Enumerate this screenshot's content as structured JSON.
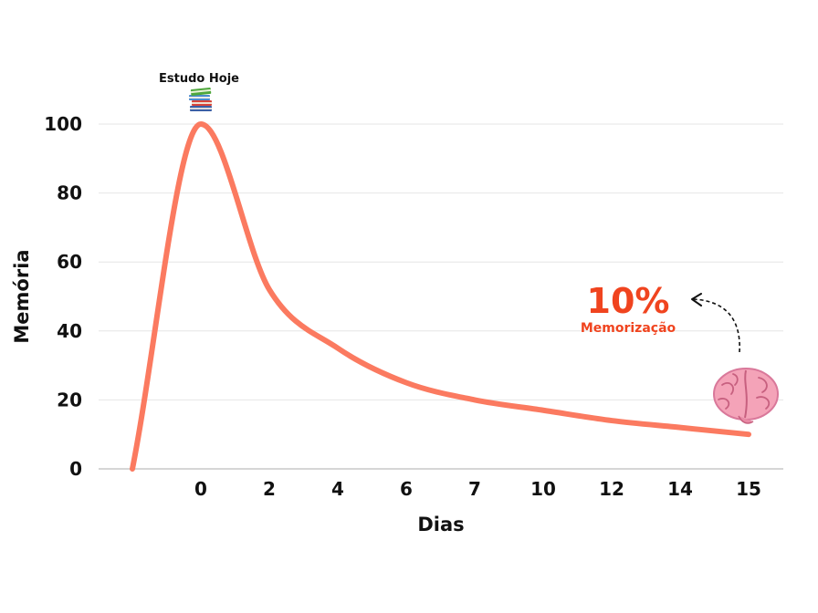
{
  "colors": {
    "curve": "#fb7a60",
    "accent": "#f0441f",
    "grid": "#e6e6e6",
    "axis": "#bdbdbd",
    "text": "#111111"
  },
  "chart_data": {
    "type": "line",
    "xlabel": "Dias",
    "ylabel": "Memória",
    "ylim": [
      0,
      100
    ],
    "yticks": [
      0,
      20,
      40,
      60,
      80,
      100
    ],
    "categories": [
      "",
      "0",
      "2",
      "4",
      "6",
      "7",
      "10",
      "12",
      "14",
      "15"
    ],
    "grid": "horizontal",
    "series": [
      {
        "values": [
          0,
          100,
          52,
          35,
          25,
          20,
          17,
          14,
          12,
          10
        ]
      }
    ],
    "annotations": {
      "peak_label": "Estudo Hoje",
      "peak_icon": "books-icon",
      "end_value": "10%",
      "end_label": "Memorização",
      "end_icon": "brain-icon",
      "arrow_icon": "curved-arrow-icon"
    }
  }
}
